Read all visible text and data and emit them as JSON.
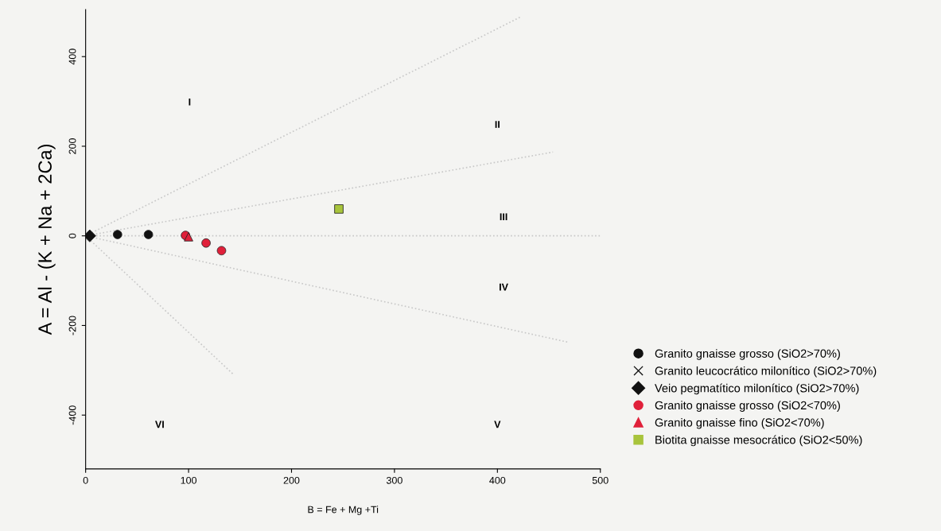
{
  "chart_data": {
    "type": "scatter",
    "xlabel": "B = Fe + Mg +Ti",
    "ylabel": "A = Al - (K + Na + 2Ca)",
    "xlim": [
      0,
      500
    ],
    "ylim": [
      -520,
      505
    ],
    "xticks": [
      0,
      100,
      200,
      300,
      400,
      500
    ],
    "yticks": [
      -400,
      -200,
      0,
      200,
      400
    ],
    "grid": false,
    "legend": "right",
    "series": [
      {
        "name": "Granito gnaisse grosso (SiO2>70%)",
        "color": "#111111",
        "marker": "circle",
        "x": [
          31,
          61
        ],
        "values": [
          3,
          3
        ]
      },
      {
        "name": "Granito leucocrático milonítico (SiO2>70%)",
        "color": "#111111",
        "marker": "cross"
      },
      {
        "name": "Veio pegmatítico milonítico (SiO2>70%)",
        "color": "#111111",
        "marker": "diamond",
        "x": [
          4
        ],
        "values": [
          0
        ]
      },
      {
        "name": "Granito gnaisse grosso (SiO2<70%)",
        "color": "#e0203a",
        "marker": "circle",
        "x": [
          97,
          117,
          132
        ],
        "values": [
          1,
          -16,
          -33
        ]
      },
      {
        "name": "Granito gnaisse fino (SiO2<70%)",
        "color": "#e0203a",
        "marker": "triangle",
        "x": [
          100
        ],
        "values": [
          -2
        ]
      },
      {
        "name": "Biotita gnaisse mesocrático (SiO2<50%)",
        "color": "#a8c43c",
        "marker": "square",
        "x": [
          246
        ],
        "values": [
          60
        ]
      },
      {
        "type": "line",
        "color": "#c8c8c8",
        "line_style": "dotted",
        "marker": "none",
        "x": [
          0,
          423
        ],
        "values": [
          0,
          489
        ]
      },
      {
        "type": "line",
        "color": "#c8c8c8",
        "line_style": "dotted",
        "marker": "none",
        "x": [
          0,
          454
        ],
        "values": [
          0,
          187
        ]
      },
      {
        "type": "line",
        "color": "#c8c8c8",
        "line_style": "dotted",
        "marker": "none",
        "x": [
          0,
          468
        ],
        "values": [
          0,
          -237
        ]
      },
      {
        "type": "line",
        "color": "#c8c8c8",
        "line_style": "dotted",
        "marker": "none",
        "x": [
          0,
          143
        ],
        "values": [
          0,
          -308
        ]
      }
    ],
    "ref_lines": [
      {
        "axis": "y",
        "value": 0,
        "color": "#c8c8c8",
        "line_style": "dotted"
      }
    ],
    "annotations": [
      "I",
      "II",
      "III",
      "IV",
      "V",
      "VI"
    ]
  }
}
